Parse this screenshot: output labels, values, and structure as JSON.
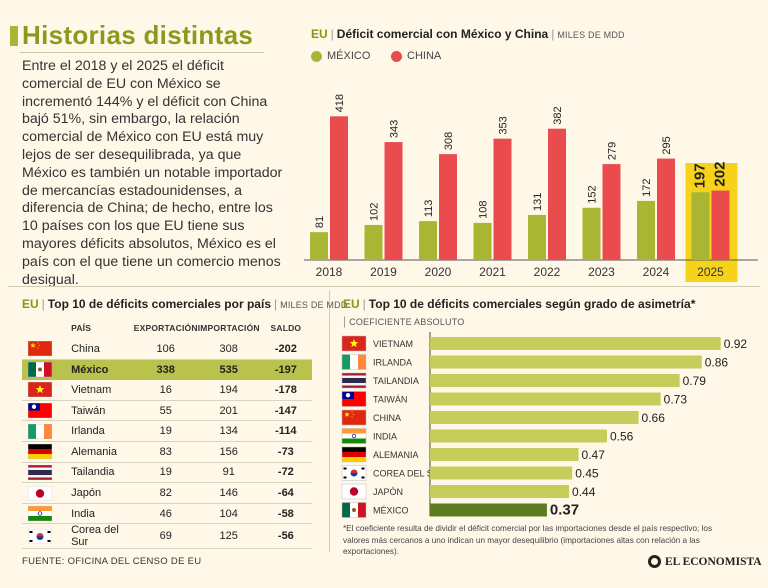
{
  "header": {
    "title": "Historias distintas",
    "intro": "Entre el 2018 y el 2025 el déficit comercial de EU con México se incrementó 144% y el déficit con China bajó 51%, sin embargo, la relación comercial de México con EU está muy lejos de ser desequilibrada, ya que México es también un notable importador de mercancías estadounidenses, a diferencia de China; de hecho, entre los 10 países con los que EU tiene sus mayores déficits absolutos, México es el país con el que tiene un comercio menos desigual."
  },
  "colors": {
    "mexico": "#a9b634",
    "china": "#ea4b4d",
    "highlight_year": "#f7d21a",
    "highlight_row": "#b9c24c",
    "asym_bar": "#c6cd5a",
    "asym_bar_mexico": "#5c7d1f"
  },
  "chart_main": {
    "eu": "EU",
    "title": "Déficit comercial con México y China",
    "unit": "MILES DE MDD",
    "legend": [
      "MÉXICO",
      "CHINA"
    ]
  },
  "chart_table": {
    "eu": "EU",
    "title": "Top 10 de déficits comerciales por país",
    "unit": "MILES DE MDD",
    "columns": [
      "PAÍS",
      "EXPORTACIÓN",
      "IMPORTACIÓN",
      "SALDO"
    ]
  },
  "chart_asym": {
    "eu": "EU",
    "title": "Top 10 de déficits comerciales según grado de asimetría*",
    "unit": "COEFICIENTE ABSOLUTO"
  },
  "footer": {
    "note": "*El coeficiente resulta de dividir el déficit comercial por las importaciones desde el país respectivo; los valores más cercanos a uno indican un mayor desequilibrio (importaciones altas con relación a las exportaciones).",
    "source": "FUENTE: OFICINA DEL CENSO DE EU",
    "logo": "EL ECONOMISTA"
  },
  "chart_data": [
    {
      "type": "bar",
      "categories": [
        "2018",
        "2019",
        "2020",
        "2021",
        "2022",
        "2023",
        "2024",
        "2025"
      ],
      "series": [
        {
          "name": "MÉXICO",
          "values": [
            81,
            102,
            113,
            108,
            131,
            152,
            172,
            197
          ]
        },
        {
          "name": "CHINA",
          "values": [
            418,
            343,
            308,
            353,
            382,
            279,
            295,
            202
          ]
        }
      ],
      "highlight_category": "2025",
      "ylim": [
        0,
        480
      ]
    },
    {
      "type": "table",
      "columns": [
        "PAÍS",
        "EXPORTACIÓN",
        "IMPORTACIÓN",
        "SALDO"
      ],
      "rows": [
        {
          "country": "China",
          "flag": "china",
          "export": "106",
          "import": "308",
          "saldo": "-202"
        },
        {
          "country": "México",
          "flag": "mexico",
          "export": "338",
          "import": "535",
          "saldo": "-197",
          "highlight": true
        },
        {
          "country": "Vietnam",
          "flag": "vietnam",
          "export": "16",
          "import": "194",
          "saldo": "-178"
        },
        {
          "country": "Taiwán",
          "flag": "taiwan",
          "export": "55",
          "import": "201",
          "saldo": "-147"
        },
        {
          "country": "Irlanda",
          "flag": "ireland",
          "export": "19",
          "import": "134",
          "saldo": "-114"
        },
        {
          "country": "Alemania",
          "flag": "germany",
          "export": "83",
          "import": "156",
          "saldo": "-73"
        },
        {
          "country": "Tailandia",
          "flag": "thailand",
          "export": "19",
          "import": "91",
          "saldo": "-72"
        },
        {
          "country": "Japón",
          "flag": "japan",
          "export": "82",
          "import": "146",
          "saldo": "-64"
        },
        {
          "country": "India",
          "flag": "india",
          "export": "46",
          "import": "104",
          "saldo": "-58"
        },
        {
          "country": "Corea del Sur",
          "flag": "korea",
          "export": "69",
          "import": "125",
          "saldo": "-56"
        }
      ]
    },
    {
      "type": "bar",
      "orientation": "horizontal",
      "categories": [
        "VIETNAM",
        "IRLANDA",
        "TAILANDIA",
        "TAIWÁN",
        "CHINA",
        "INDIA",
        "ALEMANIA",
        "COREA DEL SUR",
        "JAPÓN",
        "MÉXICO"
      ],
      "flags": [
        "vietnam",
        "ireland",
        "thailand",
        "taiwan",
        "china",
        "india",
        "germany",
        "korea",
        "japan",
        "mexico"
      ],
      "values": [
        0.92,
        0.86,
        0.79,
        0.73,
        0.66,
        0.56,
        0.47,
        0.45,
        0.44,
        0.37
      ],
      "labels": [
        "0.92",
        "0.86",
        "0.79",
        "0.73",
        "0.66",
        "0.56",
        "0.47",
        "0.45",
        "0.44",
        "0.37"
      ],
      "highlight_category": "MÉXICO",
      "xlim": [
        0,
        1
      ]
    }
  ]
}
